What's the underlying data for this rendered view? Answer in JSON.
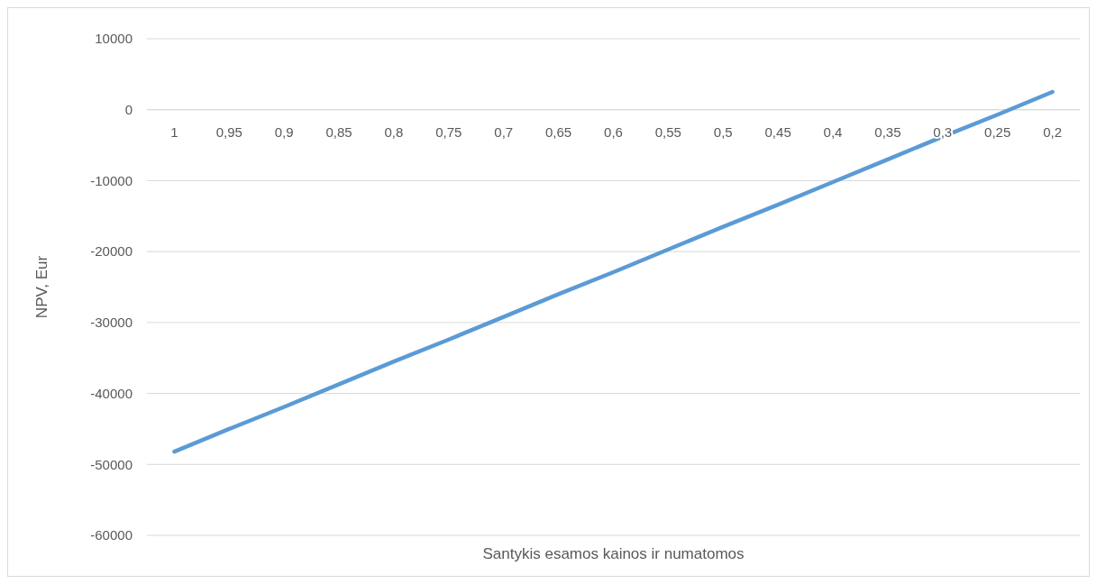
{
  "chart_data": {
    "type": "line",
    "xlabel": "Santykis esamos kainos ir numatomos",
    "ylabel": "NPV, Eur",
    "categories": [
      "1",
      "0,95",
      "0,9",
      "0,85",
      "0,8",
      "0,75",
      "0,7",
      "0,65",
      "0,6",
      "0,55",
      "0,5",
      "0,45",
      "0,4",
      "0,35",
      "0,3",
      "0,25",
      "0,2"
    ],
    "series": [
      {
        "color": "#5b9bd5",
        "values": [
          -48200,
          -45000,
          -41900,
          -38700,
          -35500,
          -32400,
          -29200,
          -26000,
          -22900,
          -19700,
          -16500,
          -13400,
          -10200,
          -7000,
          -3800,
          -700,
          2500
        ]
      }
    ],
    "ylim": [
      -60000,
      10000
    ],
    "yticks": [
      -60000,
      -50000,
      -40000,
      -30000,
      -20000,
      -10000,
      0,
      10000
    ],
    "grid": "y",
    "marker": "none",
    "line_style": "solid"
  }
}
